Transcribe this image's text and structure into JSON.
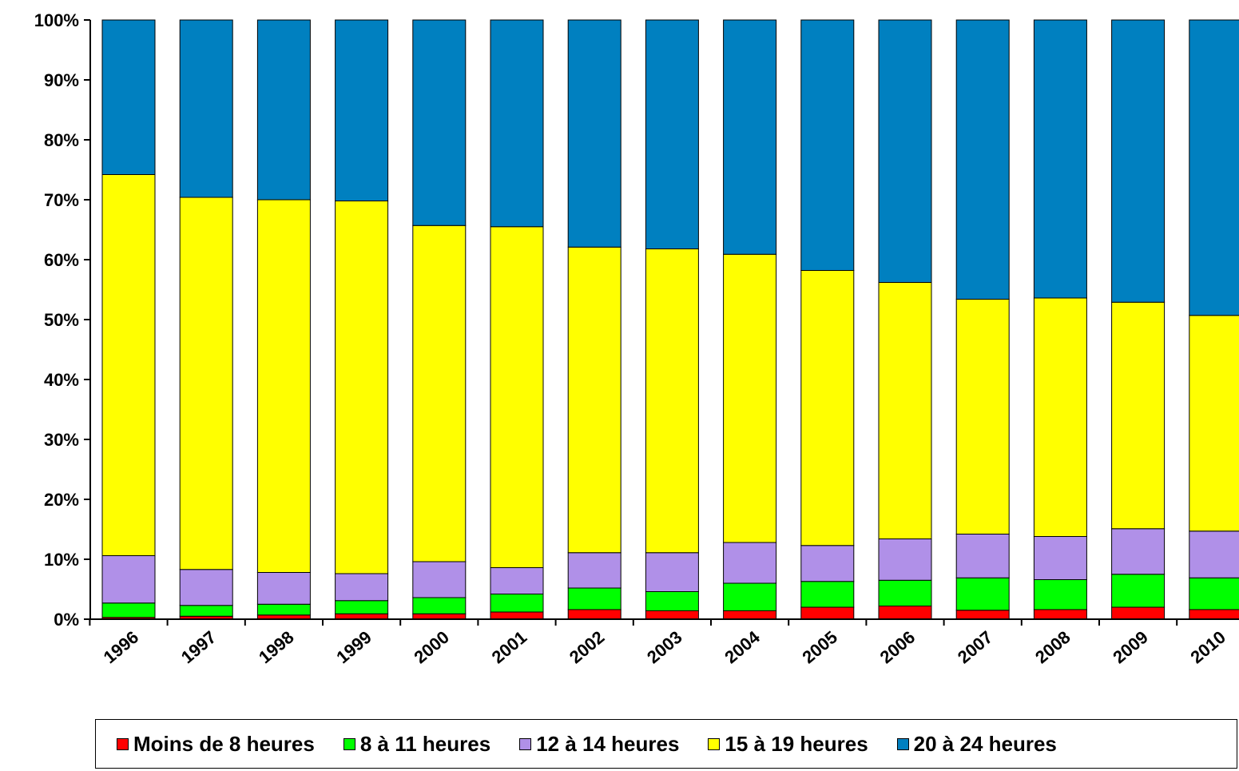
{
  "chart_data": {
    "type": "bar",
    "stacked": true,
    "title": "",
    "xlabel": "",
    "ylabel": "",
    "ylim": [
      0,
      100
    ],
    "y_ticks": [
      "0%",
      "10%",
      "20%",
      "30%",
      "40%",
      "50%",
      "60%",
      "70%",
      "80%",
      "90%",
      "100%"
    ],
    "categories": [
      "1996",
      "1997",
      "1998",
      "1999",
      "2000",
      "2001",
      "2002",
      "2003",
      "2004",
      "2005",
      "2006",
      "2007",
      "2008",
      "2009",
      "2010"
    ],
    "series": [
      {
        "name": "Moins de 8 heures",
        "color": "#ff0000",
        "values": [
          0.3,
          0.5,
          0.7,
          0.9,
          0.9,
          1.2,
          1.6,
          1.4,
          1.4,
          2.0,
          2.2,
          1.5,
          1.6,
          2.0,
          1.6
        ]
      },
      {
        "name": "8 à 11 heures",
        "color": "#00ff00",
        "values": [
          2.4,
          1.8,
          1.8,
          2.2,
          2.7,
          3.0,
          3.6,
          3.2,
          4.6,
          4.3,
          4.3,
          5.4,
          5.0,
          5.5,
          5.3
        ]
      },
      {
        "name": "12 à 14 heures",
        "color": "#b090e8",
        "values": [
          7.9,
          6.0,
          5.3,
          4.5,
          6.0,
          4.4,
          5.9,
          6.5,
          6.8,
          6.0,
          6.9,
          7.3,
          7.2,
          7.6,
          7.8
        ]
      },
      {
        "name": "15 à 19 heures",
        "color": "#ffff00",
        "values": [
          63.6,
          62.1,
          62.2,
          62.2,
          56.1,
          56.9,
          51.0,
          50.7,
          48.1,
          45.9,
          42.8,
          39.2,
          39.8,
          37.8,
          36.0
        ]
      },
      {
        "name": "20 à 24 heures",
        "color": "#0080c0",
        "values": [
          25.8,
          29.6,
          30.0,
          30.2,
          34.3,
          34.5,
          37.9,
          38.2,
          39.1,
          41.8,
          43.8,
          46.6,
          46.4,
          47.1,
          49.3
        ]
      }
    ],
    "legend_position": "bottom",
    "grid": false
  }
}
